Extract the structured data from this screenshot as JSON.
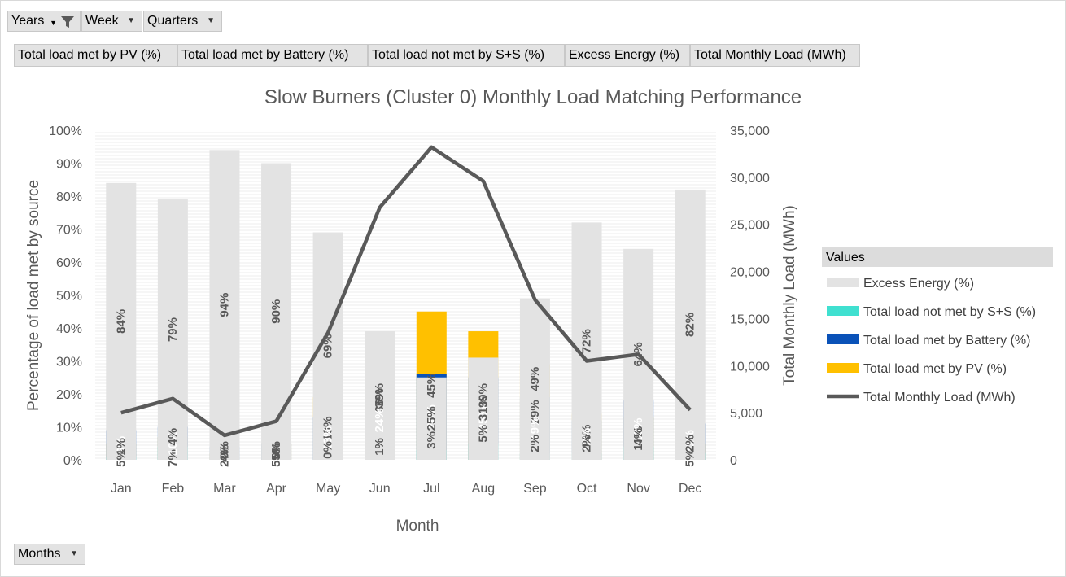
{
  "filters": {
    "years_label": "Years",
    "week_label": "Week",
    "quarters_label": "Quarters",
    "months_label": "Months"
  },
  "value_fields": [
    "Total load met by PV (%)",
    "Total load met by Battery (%)",
    "Total load not met by S+S (%)",
    "Excess Energy (%)",
    "Total Monthly Load (MWh)"
  ],
  "legend": {
    "header": "Values"
  },
  "colors": {
    "pv": "#ffc000",
    "battery": "#0a52b8",
    "notmet": "#40e0d0",
    "excess": "#e3e3e3",
    "line": "#595959"
  },
  "chart_data": {
    "type": "bar",
    "stacked": true,
    "title": "Slow Burners (Cluster 0) Monthly Load Matching Performance",
    "xlabel": "Month",
    "ylabel": "Percentage of load met by source",
    "y2label": "Total Monthly Load (MWh)",
    "ylim": [
      0,
      1
    ],
    "y2lim": [
      0,
      35000
    ],
    "yticks": [
      "0%",
      "10%",
      "20%",
      "30%",
      "40%",
      "50%",
      "60%",
      "70%",
      "80%",
      "90%",
      "100%"
    ],
    "y2ticks": [
      "0",
      "5,000",
      "10,000",
      "15,000",
      "20,000",
      "25,000",
      "30,000",
      "35,000"
    ],
    "categories": [
      "Jan",
      "Feb",
      "Mar",
      "Apr",
      "May",
      "Jun",
      "Jul",
      "Aug",
      "Sep",
      "Oct",
      "Nov",
      "Dec"
    ],
    "series": [
      {
        "name": "Total load met by PV (%)",
        "key": "pv",
        "values": [
          0.05,
          0.07,
          0.02,
          0.05,
          0.19,
          0.36,
          0.45,
          0.39,
          0.29,
          0.14,
          0.13,
          0.05
        ],
        "labels": [
          "5%",
          "7%",
          "2%",
          "5%",
          "19%",
          "36%",
          "45%",
          "39%",
          "29%",
          "14%",
          "13%",
          "5%"
        ]
      },
      {
        "name": "Total load met by Battery (%)",
        "key": "battery",
        "values": [
          0.09,
          0.1,
          0.04,
          0.05,
          0.13,
          0.24,
          0.26,
          0.25,
          0.19,
          0.12,
          0.18,
          0.11
        ],
        "labels": [
          "9%",
          "10%",
          "4%",
          "5%",
          "13%",
          "24%",
          "26%",
          "25%",
          "19%",
          "12%",
          "18%",
          "11%"
        ]
      },
      {
        "name": "Total load not met by S+S (%)",
        "key": "notmet",
        "values": [
          0.01,
          0.04,
          0.0,
          0.0,
          0.0,
          0.01,
          0.03,
          0.05,
          0.02,
          0.02,
          0.04,
          0.02
        ],
        "labels": [
          "1%",
          "4%",
          "0%",
          "0%",
          "0%",
          "1%",
          "3%",
          "5%",
          "2%",
          "2%",
          "4%",
          "2%"
        ]
      },
      {
        "name": "Excess Energy (%)",
        "key": "excess",
        "values": [
          0.84,
          0.79,
          0.94,
          0.9,
          0.69,
          0.39,
          0.25,
          0.31,
          0.49,
          0.72,
          0.64,
          0.82
        ],
        "labels": [
          "84%",
          "79%",
          "94%",
          "90%",
          "69%",
          "39%",
          "25%",
          "31%",
          "49%",
          "72%",
          "64%",
          "82%"
        ]
      }
    ],
    "line_series": {
      "name": "Total Monthly Load (MWh)",
      "values": [
        5000,
        6500,
        2600,
        4100,
        13500,
        26800,
        33200,
        29600,
        17000,
        10500,
        11200,
        5300
      ]
    },
    "legend_order": [
      "Excess Energy (%)",
      "Total load not met by S+S (%)",
      "Total load met by Battery (%)",
      "Total load met by PV (%)",
      "Total Monthly Load (MWh)"
    ],
    "legend_position": "right",
    "grid": false
  }
}
